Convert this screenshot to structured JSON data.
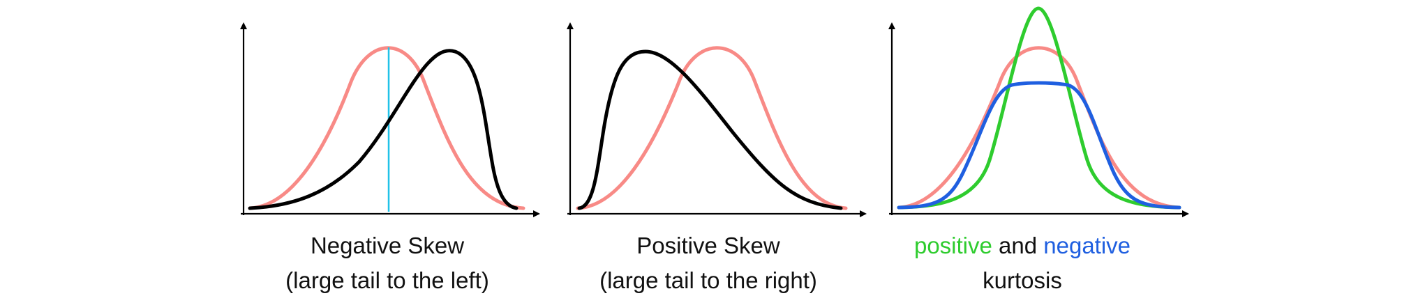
{
  "colors": {
    "axis": "#000000",
    "normal": "#f88a86",
    "skewed": "#000000",
    "mode_marker": "#21c2e8",
    "positive_kurtosis": "#2ecc2e",
    "negative_kurtosis": "#1f5fe0"
  },
  "panels": [
    {
      "caption_line1": "Negative Skew",
      "caption_line2": "(large tail to the left)"
    },
    {
      "caption_line1": "Positive Skew",
      "caption_line2": "(large tail to the right)"
    },
    {
      "caption_word1": "positive",
      "caption_word2": " and ",
      "caption_word3": "negative",
      "caption_line2": "kurtosis"
    }
  ]
}
